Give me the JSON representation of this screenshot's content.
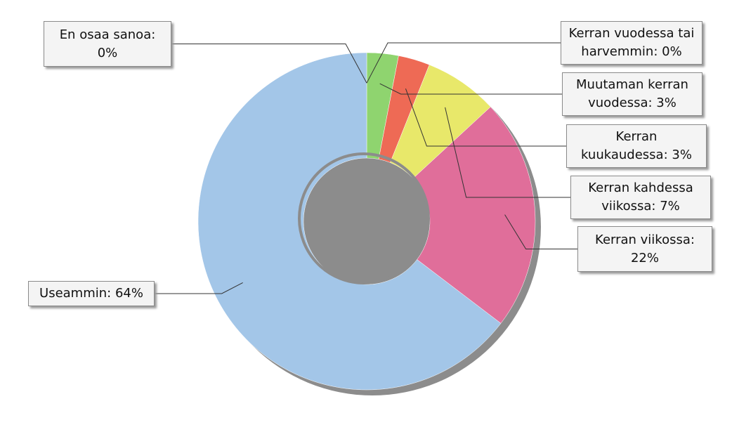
{
  "chart_data": {
    "type": "donut",
    "categories": [
      "En osaa sanoa:",
      "Kerran vuodessa tai harvemmin:",
      "Muutaman kerran vuodessa:",
      "Kerran kuukaudessa:",
      "Kerran kahdessa viikossa:",
      "Kerran viikossa:",
      "Useammin:"
    ],
    "values": [
      0,
      0,
      3,
      3,
      7,
      22,
      64
    ],
    "value_labels": [
      "0%",
      "0%",
      "3%",
      "3%",
      "7%",
      "22%",
      "64%"
    ],
    "colors": [
      "#b0b0b0",
      "#9ad0e0",
      "#8fd46f",
      "#ee6a55",
      "#e8e86a",
      "#e06e9a",
      "#a3c6e8"
    ]
  }
}
